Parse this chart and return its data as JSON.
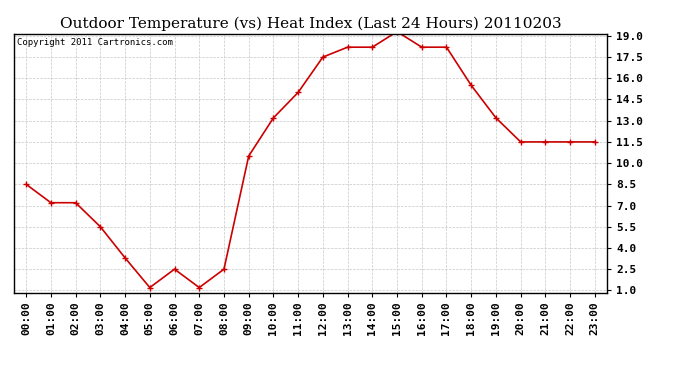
{
  "title": "Outdoor Temperature (vs) Heat Index (Last 24 Hours) 20110203",
  "copyright_text": "Copyright 2011 Cartronics.com",
  "x_labels": [
    "00:00",
    "01:00",
    "02:00",
    "03:00",
    "04:00",
    "05:00",
    "06:00",
    "07:00",
    "08:00",
    "09:00",
    "10:00",
    "11:00",
    "12:00",
    "13:00",
    "14:00",
    "15:00",
    "16:00",
    "17:00",
    "18:00",
    "19:00",
    "20:00",
    "21:00",
    "22:00",
    "23:00"
  ],
  "y_values": [
    8.5,
    7.2,
    7.2,
    5.5,
    3.3,
    1.2,
    2.5,
    1.2,
    2.5,
    10.5,
    13.2,
    15.0,
    17.5,
    18.2,
    18.2,
    19.3,
    18.2,
    18.2,
    15.5,
    13.2,
    11.5,
    11.5,
    11.5,
    11.5
  ],
  "line_color": "#cc0000",
  "marker": "+",
  "marker_size": 5,
  "background_color": "#ffffff",
  "grid_color": "#c8c8c8",
  "ylim_min": 1.0,
  "ylim_max": 19.0,
  "yticks": [
    1.0,
    2.5,
    4.0,
    5.5,
    7.0,
    8.5,
    10.0,
    11.5,
    13.0,
    14.5,
    16.0,
    17.5,
    19.0
  ],
  "title_fontsize": 11,
  "tick_fontsize": 8,
  "copyright_fontsize": 6.5
}
